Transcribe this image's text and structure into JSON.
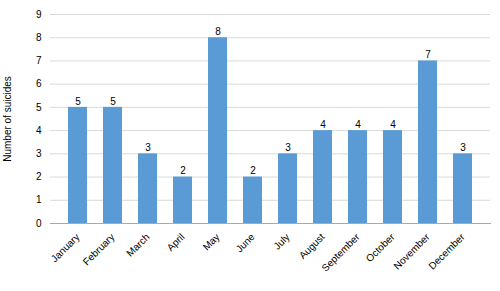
{
  "chart_data": {
    "type": "bar",
    "categories": [
      "January",
      "February",
      "March",
      "April",
      "May",
      "June",
      "July",
      "August",
      "September",
      "October",
      "November",
      "December"
    ],
    "values": [
      5,
      5,
      3,
      2,
      8,
      2,
      3,
      4,
      4,
      4,
      7,
      3
    ],
    "color": "#5b9bd5",
    "ylabel": "Number of suicides",
    "ylim": [
      0,
      9
    ],
    "yticks": [
      0,
      1,
      2,
      3,
      4,
      5,
      6,
      7,
      8,
      9
    ],
    "grid": true,
    "data_labels": true
  }
}
